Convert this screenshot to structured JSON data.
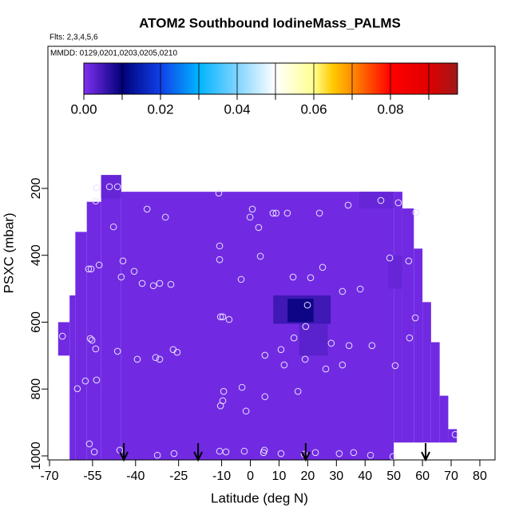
{
  "chart_data": {
    "type": "curtain",
    "title": "ATOM2 Southbound IodineMass_PALMS",
    "flights": "Flts: 2,3,4,5,6",
    "dates": "MMDD: 0129,0201,0203,0205,0210",
    "xlabel": "Latitude (deg N)",
    "ylabel": "PSXC (mbar)",
    "xlim": [
      -70.56,
      85.3
    ],
    "ylim": [
      1012,
      -225
    ],
    "xticks": [
      -70,
      -55,
      -40,
      -25,
      -10,
      0,
      10,
      20,
      30,
      40,
      50,
      60,
      70,
      80
    ],
    "yticks": [
      200,
      400,
      600,
      800,
      1000
    ],
    "colorbar": {
      "lim": [
        0,
        0.0975
      ],
      "ticks": [
        {
          "value": 0,
          "label": "0.00"
        },
        {
          "value": 0.02,
          "label": "0.02"
        },
        {
          "value": 0.04,
          "label": "0.04"
        },
        {
          "value": 0.06,
          "label": "0.06"
        },
        {
          "value": 0.08,
          "label": "0.08"
        }
      ],
      "minor_ticks": [
        0.01,
        0.03,
        0.05,
        0.07,
        0.09
      ],
      "stops": [
        0,
        0.01,
        0.02,
        0.03,
        0.04,
        0.05,
        0.06,
        0.065,
        0.07,
        0.08,
        0.09,
        0.0975
      ],
      "colors": [
        "#8030f0",
        "#00007a",
        "#1040e8",
        "#00b4ff",
        "#80d4ff",
        "#ffffff",
        "#ffff90",
        "#ffc800",
        "#ff8c00",
        "#ff0000",
        "#e00000",
        "#a01818"
      ]
    },
    "cells": [
      {
        "lat": [
          -67,
          -63
        ],
        "p": [
          600,
          700
        ],
        "value": 0.0012
      },
      {
        "lat": [
          -63,
          -61
        ],
        "p": [
          520,
          1012
        ],
        "value": 0.0012
      },
      {
        "lat": [
          -61,
          -57
        ],
        "p": [
          330,
          1012
        ],
        "value": 0.0012
      },
      {
        "lat": [
          -57,
          -52
        ],
        "p": [
          240,
          1012
        ],
        "value": 0.0012
      },
      {
        "lat": [
          -52,
          -45
        ],
        "p": [
          160,
          1012
        ],
        "value": 0.0012
      },
      {
        "lat": [
          -45,
          50
        ],
        "p": [
          210,
          1012
        ],
        "value": 0.0012
      },
      {
        "lat": [
          50,
          53
        ],
        "p": [
          210,
          960
        ],
        "value": 0.0012
      },
      {
        "lat": [
          53,
          57
        ],
        "p": [
          260,
          960
        ],
        "value": 0.0012
      },
      {
        "lat": [
          57,
          60
        ],
        "p": [
          380,
          960
        ],
        "value": 0.0012
      },
      {
        "lat": [
          60,
          63
        ],
        "p": [
          540,
          960
        ],
        "value": 0.0012
      },
      {
        "lat": [
          63,
          66
        ],
        "p": [
          660,
          960
        ],
        "value": 0.0012
      },
      {
        "lat": [
          66,
          69
        ],
        "p": [
          820,
          960
        ],
        "value": 0.0012
      },
      {
        "lat": [
          69,
          72
        ],
        "p": [
          920,
          960
        ],
        "value": 0.0012
      },
      {
        "lat": [
          -52,
          -45
        ],
        "p": [
          160,
          230
        ],
        "value": 0.002
      },
      {
        "lat": [
          38,
          50
        ],
        "p": [
          210,
          260
        ],
        "value": 0.002
      },
      {
        "lat": [
          48,
          53
        ],
        "p": [
          400,
          500
        ],
        "value": 0.002
      },
      {
        "lat": [
          8,
          28
        ],
        "p": [
          520,
          605
        ],
        "value": 0.005
      },
      {
        "lat": [
          13,
          22
        ],
        "p": [
          530,
          600
        ],
        "value": 0.009
      },
      {
        "lat": [
          17,
          27
        ],
        "p": [
          605,
          700
        ],
        "value": 0.003
      }
    ],
    "points": {
      "x": [
        -53.6,
        -49.1,
        -46.3,
        -53.9,
        -11.0,
        0.7,
        -0.1,
        7.9,
        9.0,
        12.9,
        24.1,
        34.1,
        45.5,
        51.6,
        57.7,
        -36.0,
        -29.6,
        -47.7,
        2.9,
        -10.7,
        -10.7,
        -55.5,
        -56.4,
        -52.7,
        -44.4,
        -40.5,
        3.5,
        48.6,
        55.2,
        25.2,
        -45.0,
        -37.7,
        -33.8,
        -31.6,
        -27.7,
        -3.2,
        14.9,
        21.0,
        38.3,
        32.1,
        19.9,
        57.5,
        -10.4,
        -9.6,
        -7.4,
        19.3,
        15.2,
        28.2,
        -65.5,
        -55.8,
        -55.2,
        -53.9,
        -46.3,
        -39.4,
        -33.0,
        -31.6,
        -26.9,
        -25.5,
        10.7,
        19.1,
        34.4,
        42.4,
        26.3,
        32.1,
        11.8,
        5.1,
        50.5,
        55.5,
        -9.3,
        -2.9,
        -9.6,
        -10.4,
        5.1,
        16.6,
        -1.5,
        -60.3,
        -57.5,
        -53.6,
        -56.1,
        -54.4,
        -45.5,
        -32.4,
        -26.6,
        -10.7,
        -8.5,
        -2.1,
        4.6,
        4.9,
        10.7,
        18.8,
        22.7,
        31.0,
        36.0,
        41.9,
        49.7,
        71.4
      ],
      "y": [
        198,
        195,
        195,
        238,
        214,
        262,
        286,
        274,
        274,
        274,
        274,
        250,
        236,
        243,
        272,
        262,
        286,
        315,
        317,
        372,
        413,
        441,
        441,
        429,
        417,
        448,
        403,
        408,
        417,
        436,
        465,
        484,
        491,
        484,
        487,
        472,
        465,
        467,
        501,
        508,
        549,
        587,
        584,
        584,
        592,
        613,
        647,
        663,
        642,
        649,
        654,
        680,
        687,
        711,
        706,
        711,
        682,
        690,
        682,
        711,
        670,
        670,
        740,
        728,
        728,
        699,
        730,
        647,
        807,
        795,
        835,
        850,
        823,
        807,
        866,
        799,
        776,
        773,
        964,
        988,
        983,
        998,
        993,
        986,
        988,
        986,
        990,
        983,
        993,
        995,
        990,
        993,
        990,
        998,
        1002,
        936
      ]
    },
    "arrows": [
      -44.1,
      -18.2,
      19.3,
      61.1
    ]
  }
}
